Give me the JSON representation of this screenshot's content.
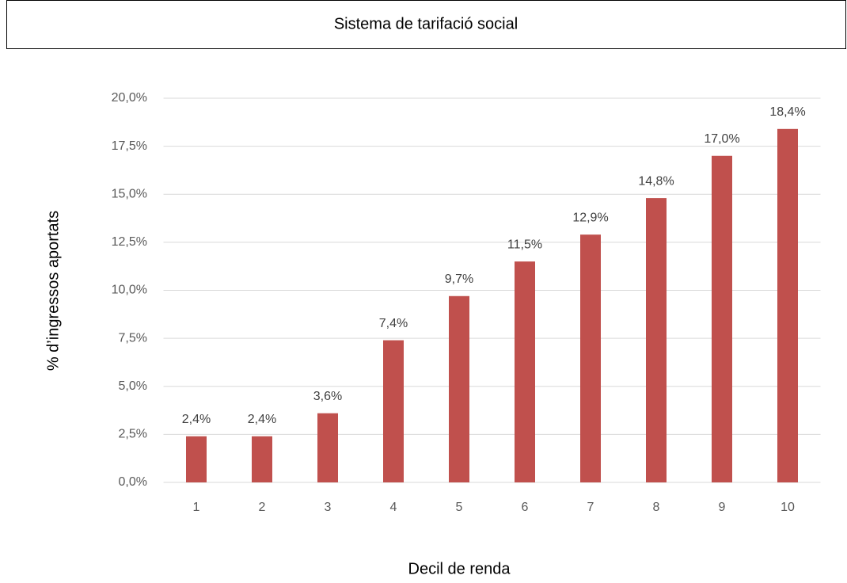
{
  "chart_data": {
    "type": "bar",
    "title": "Sistema de tarifació social",
    "x_label": "Decil de renda",
    "y_label": "% d’ingressos aportats",
    "categories": [
      "1",
      "2",
      "3",
      "4",
      "5",
      "6",
      "7",
      "8",
      "9",
      "10"
    ],
    "values": [
      2.4,
      2.4,
      3.6,
      7.4,
      9.7,
      11.5,
      12.9,
      14.8,
      17.0,
      18.4
    ],
    "value_labels": [
      "2,4%",
      "2,4%",
      "3,6%",
      "7,4%",
      "9,7%",
      "11,5%",
      "12,9%",
      "14,8%",
      "17,0%",
      "18,4%"
    ],
    "color": "#c0504d",
    "ylim": [
      0,
      20
    ],
    "yticks": [
      {
        "value": 0,
        "label": "0,0%"
      },
      {
        "value": 2.5,
        "label": "2,5%"
      },
      {
        "value": 5,
        "label": "5,0%"
      },
      {
        "value": 7.5,
        "label": "7,5%"
      },
      {
        "value": 10,
        "label": "10,0%"
      },
      {
        "value": 12.5,
        "label": "12,5%"
      },
      {
        "value": 15,
        "label": "15,0%"
      },
      {
        "value": 17.5,
        "label": "17,5%"
      },
      {
        "value": 20,
        "label": "20,0%"
      }
    ],
    "grid": true
  }
}
